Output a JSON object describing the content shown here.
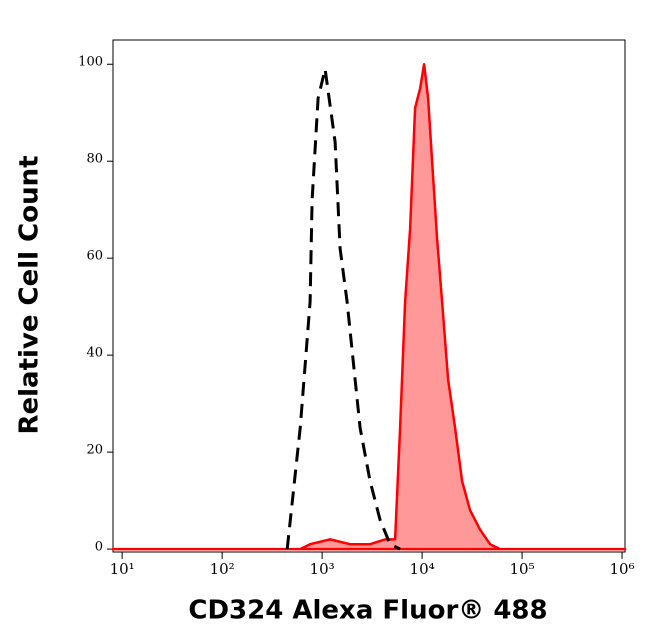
{
  "chart_data": {
    "type": "histogram-overlay",
    "x_label": "CD324 Alexa Fluor® 488",
    "y_label": "Relative Cell Count",
    "xscale": "log",
    "xlim": [
      8.1,
      1070000
    ],
    "ylim": [
      -0.6,
      105
    ],
    "xticks": [
      {
        "value": 10,
        "label": "10¹"
      },
      {
        "value": 100,
        "label": "10²"
      },
      {
        "value": 1000,
        "label": "10³"
      },
      {
        "value": 10000,
        "label": "10⁴"
      },
      {
        "value": 100000,
        "label": "10⁵"
      },
      {
        "value": 1000000,
        "label": "10⁶"
      }
    ],
    "yticks": [
      0,
      20,
      40,
      60,
      80,
      100
    ],
    "series": [
      {
        "color": "#ff0000",
        "fill": "#ff9999",
        "linestyle": "solid",
        "x": [
          8.1,
          603,
          759,
          1202,
          1905,
          3020,
          4266,
          5370,
          6026,
          6761,
          7586,
          8511,
          9550,
          10471,
          11482,
          12589,
          14125,
          15849,
          18197,
          21380,
          25119,
          30200,
          38019,
          47863,
          60256,
          1070000
        ],
        "values": [
          0,
          0,
          1,
          2,
          1,
          1,
          2,
          2,
          25,
          51,
          66,
          91,
          95,
          100,
          93,
          80,
          64,
          51,
          35,
          25,
          14,
          8,
          4,
          1,
          0,
          0
        ]
      },
      {
        "color": "#000000",
        "linestyle": "dashed",
        "x": [
          447,
          603,
          759,
          794,
          912,
          1072,
          1349,
          1514,
          1778,
          1995,
          2399,
          3020,
          3802,
          4786,
          6026
        ],
        "values": [
          0,
          25,
          51,
          72,
          93,
          99,
          84,
          62,
          51,
          41,
          25,
          14,
          6,
          1,
          0
        ]
      }
    ]
  }
}
